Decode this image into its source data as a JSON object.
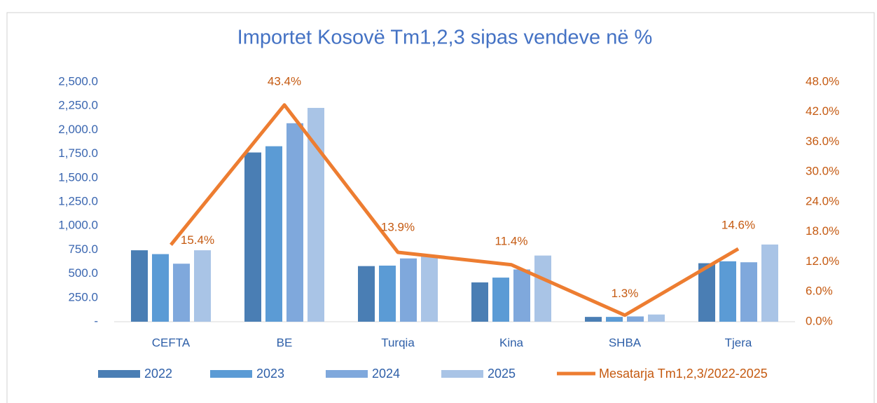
{
  "chart_data": {
    "type": "bar_line",
    "title": "Importet  Kosovë Tm1,2,3  sipas vendeve në %",
    "categories": [
      "CEFTA",
      "BE",
      "Turqia",
      "Kina",
      "SHBA",
      "Tjera"
    ],
    "series": [
      {
        "name": "2022",
        "color": "#4a7eb4",
        "values": [
          745,
          1765,
          580,
          410,
          50,
          610
        ]
      },
      {
        "name": "2023",
        "color": "#5b9bd5",
        "values": [
          705,
          1830,
          585,
          460,
          50,
          630
        ]
      },
      {
        "name": "2024",
        "color": "#7fa8dc",
        "values": [
          605,
          2070,
          660,
          545,
          55,
          620
        ]
      },
      {
        "name": "2025",
        "color": "#a9c4e6",
        "values": [
          745,
          2230,
          690,
          690,
          75,
          805
        ]
      },
      {
        "name": "Mesatarja Tm1,2,3/2022-2025",
        "type": "line",
        "axis": "y2",
        "color": "#ed7d31",
        "values": [
          15.4,
          43.4,
          13.9,
          11.4,
          1.3,
          14.6
        ],
        "value_labels": [
          "15.4%",
          "43.4%",
          "13.9%",
          "11.4%",
          "1.3%",
          "14.6%"
        ]
      }
    ],
    "ylim": [
      0,
      2500
    ],
    "yticks": [
      {
        "value": 0,
        "label": "-"
      },
      {
        "value": 250,
        "label": "250.0"
      },
      {
        "value": 500,
        "label": "500.0"
      },
      {
        "value": 750,
        "label": "750.0"
      },
      {
        "value": 1000,
        "label": "1,000.0"
      },
      {
        "value": 1250,
        "label": "1,250.0"
      },
      {
        "value": 1500,
        "label": "1,500.0"
      },
      {
        "value": 1750,
        "label": "1,750.0"
      },
      {
        "value": 2000,
        "label": "2,000.0"
      },
      {
        "value": 2250,
        "label": "2,250.0"
      },
      {
        "value": 2500,
        "label": "2,500.0"
      }
    ],
    "y2lim": [
      0,
      48
    ],
    "y2ticks": [
      {
        "value": 0,
        "label": "0.0%"
      },
      {
        "value": 6,
        "label": "6.0%"
      },
      {
        "value": 12,
        "label": "12.0%"
      },
      {
        "value": 18,
        "label": "18.0%"
      },
      {
        "value": 24,
        "label": "24.0%"
      },
      {
        "value": 30,
        "label": "30.0%"
      },
      {
        "value": 36,
        "label": "36.0%"
      },
      {
        "value": 42,
        "label": "42.0%"
      },
      {
        "value": 48,
        "label": "48.0%"
      }
    ],
    "legend": "bottom",
    "grid": false
  }
}
